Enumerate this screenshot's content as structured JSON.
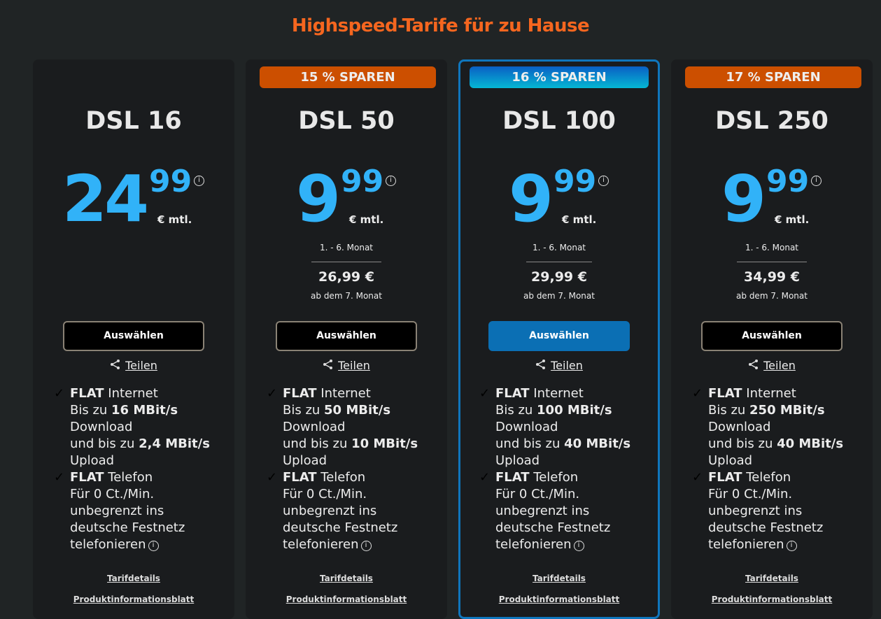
{
  "heading": "Highspeed-Tarife für zu Hause",
  "colors": {
    "heading": "#f5661f",
    "price": "#31b2f8",
    "badge": "#cc4f00",
    "selected_border": "#0f76bd",
    "selected_button": "#0b6fb4"
  },
  "tariffs": [
    {
      "badge": null,
      "name": "DSL 16",
      "price_main": "24",
      "price_cents": "99",
      "unit": "€ mtl.",
      "period": null,
      "after_price": null,
      "after_label": null,
      "button": "Auswählen",
      "share": "Teilen",
      "selected": false,
      "features": [
        [
          [
            {
              "t": "FLAT",
              "b": true
            },
            {
              "t": " Internet"
            }
          ],
          [
            {
              "t": "Bis zu "
            },
            {
              "t": "16 MBit/s",
              "b": true
            }
          ],
          [
            {
              "t": "Download"
            }
          ],
          [
            {
              "t": "und bis zu "
            },
            {
              "t": "2,4 MBit/s",
              "b": true
            }
          ],
          [
            {
              "t": "Upload"
            }
          ]
        ],
        [
          [
            {
              "t": "FLAT",
              "b": true
            },
            {
              "t": " Telefon"
            }
          ],
          [
            {
              "t": "Für 0 Ct./Min."
            }
          ],
          [
            {
              "t": "unbegrenzt ins"
            }
          ],
          [
            {
              "t": "deutsche Festnetz"
            }
          ],
          [
            {
              "t": "telefonieren",
              "i": true
            }
          ]
        ]
      ],
      "details": "Tarifdetails",
      "pib": "Produktinformationsblatt"
    },
    {
      "badge": "15 % SPAREN",
      "name": "DSL 50",
      "price_main": "9",
      "price_cents": "99",
      "unit": "€ mtl.",
      "period": "1. - 6. Monat",
      "after_price": "26,99 €",
      "after_label": "ab dem 7. Monat",
      "button": "Auswählen",
      "share": "Teilen",
      "selected": false,
      "features": [
        [
          [
            {
              "t": "FLAT",
              "b": true
            },
            {
              "t": " Internet"
            }
          ],
          [
            {
              "t": "Bis zu "
            },
            {
              "t": "50 MBit/s",
              "b": true
            }
          ],
          [
            {
              "t": "Download"
            }
          ],
          [
            {
              "t": "und bis zu "
            },
            {
              "t": "10 MBit/s",
              "b": true
            }
          ],
          [
            {
              "t": "Upload"
            }
          ]
        ],
        [
          [
            {
              "t": "FLAT",
              "b": true
            },
            {
              "t": " Telefon"
            }
          ],
          [
            {
              "t": "Für 0 Ct./Min."
            }
          ],
          [
            {
              "t": "unbegrenzt ins"
            }
          ],
          [
            {
              "t": "deutsche Festnetz"
            }
          ],
          [
            {
              "t": "telefonieren",
              "i": true
            }
          ]
        ]
      ],
      "details": "Tarifdetails",
      "pib": "Produktinformationsblatt"
    },
    {
      "badge": "16 % SPAREN",
      "name": "DSL 100",
      "price_main": "9",
      "price_cents": "99",
      "unit": "€ mtl.",
      "period": "1. - 6. Monat",
      "after_price": "29,99 €",
      "after_label": "ab dem 7. Monat",
      "button": "Auswählen",
      "share": "Teilen",
      "selected": true,
      "features": [
        [
          [
            {
              "t": "FLAT",
              "b": true
            },
            {
              "t": " Internet"
            }
          ],
          [
            {
              "t": "Bis zu "
            },
            {
              "t": "100 MBit/s",
              "b": true
            }
          ],
          [
            {
              "t": "Download"
            }
          ],
          [
            {
              "t": "und bis zu "
            },
            {
              "t": "40 MBit/s",
              "b": true
            }
          ],
          [
            {
              "t": "Upload"
            }
          ]
        ],
        [
          [
            {
              "t": "FLAT",
              "b": true
            },
            {
              "t": " Telefon"
            }
          ],
          [
            {
              "t": "Für 0 Ct./Min."
            }
          ],
          [
            {
              "t": "unbegrenzt ins"
            }
          ],
          [
            {
              "t": "deutsche Festnetz"
            }
          ],
          [
            {
              "t": "telefonieren",
              "i": true
            }
          ]
        ]
      ],
      "details": "Tarifdetails",
      "pib": "Produktinformationsblatt"
    },
    {
      "badge": "17 % SPAREN",
      "name": "DSL 250",
      "price_main": "9",
      "price_cents": "99",
      "unit": "€ mtl.",
      "period": "1. - 6. Monat",
      "after_price": "34,99 €",
      "after_label": "ab dem 7. Monat",
      "button": "Auswählen",
      "share": "Teilen",
      "selected": false,
      "features": [
        [
          [
            {
              "t": "FLAT",
              "b": true
            },
            {
              "t": " Internet"
            }
          ],
          [
            {
              "t": "Bis zu "
            },
            {
              "t": "250 MBit/s",
              "b": true
            }
          ],
          [
            {
              "t": "Download"
            }
          ],
          [
            {
              "t": "und bis zu "
            },
            {
              "t": "40 MBit/s",
              "b": true
            }
          ],
          [
            {
              "t": "Upload"
            }
          ]
        ],
        [
          [
            {
              "t": "FLAT",
              "b": true
            },
            {
              "t": " Telefon"
            }
          ],
          [
            {
              "t": "Für 0 Ct./Min."
            }
          ],
          [
            {
              "t": "unbegrenzt ins"
            }
          ],
          [
            {
              "t": "deutsche Festnetz"
            }
          ],
          [
            {
              "t": "telefonieren",
              "i": true
            }
          ]
        ]
      ],
      "details": "Tarifdetails",
      "pib": "Produktinformationsblatt"
    }
  ]
}
